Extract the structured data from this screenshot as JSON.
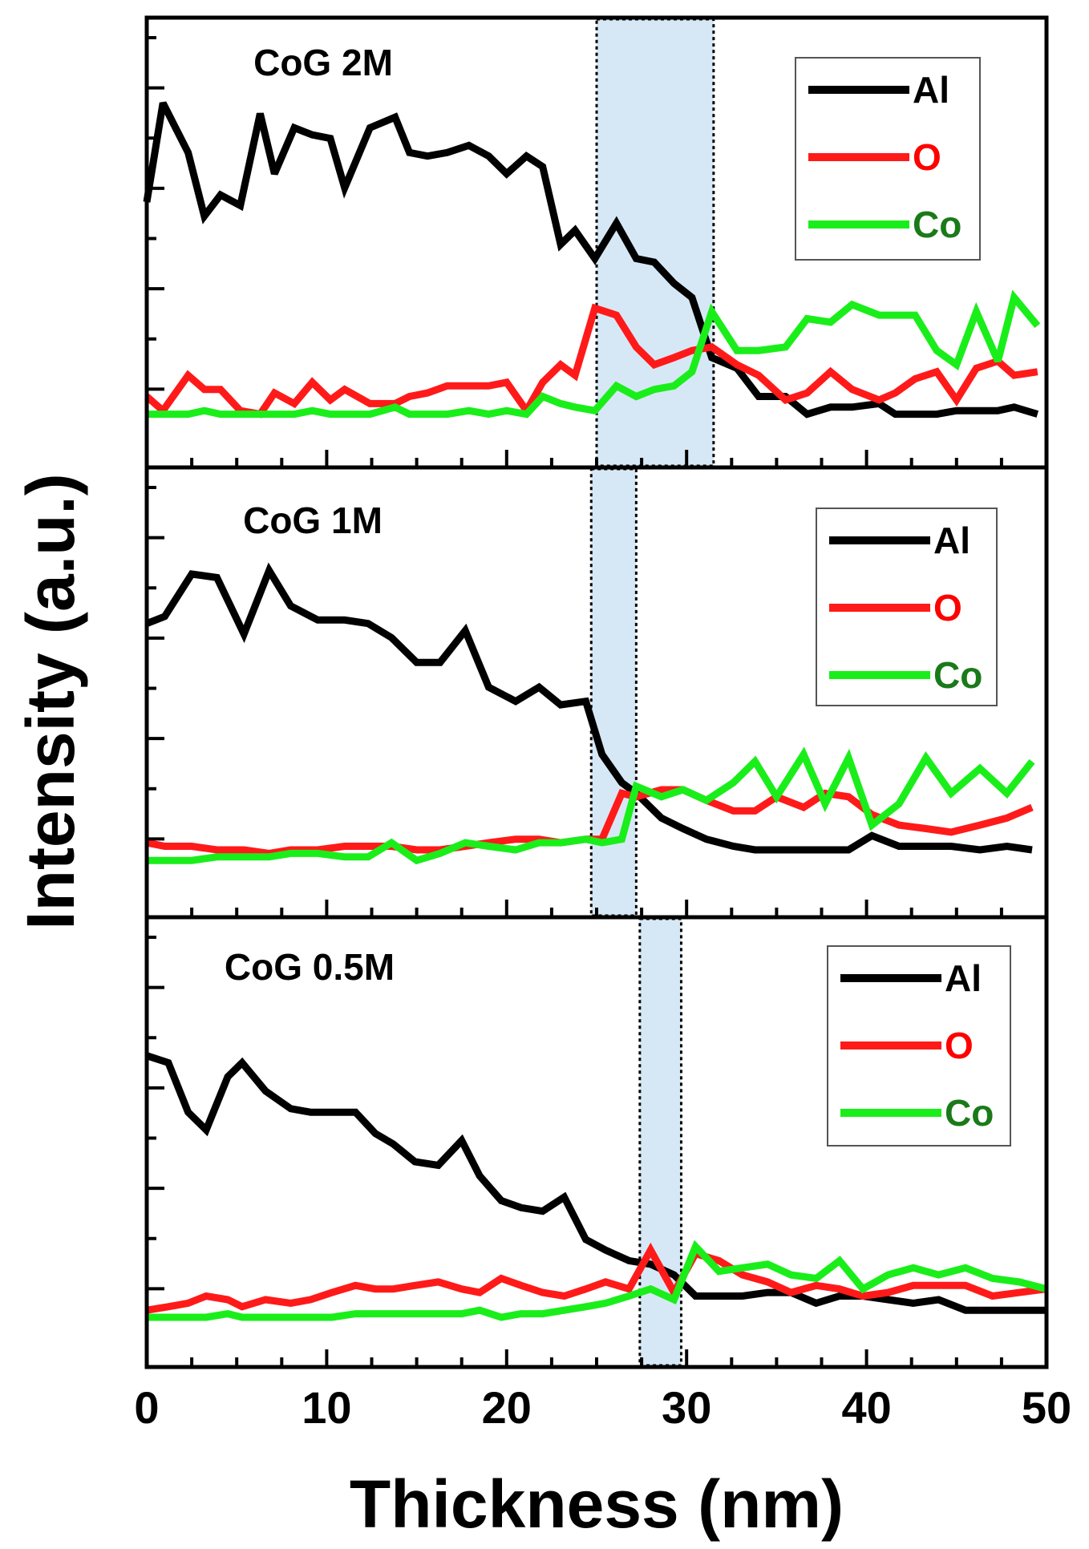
{
  "figure": {
    "xlabel": "Thickness (nm)",
    "ylabel": "Intensity (a.u.)",
    "xticks": [
      "0",
      "10",
      "20",
      "30",
      "40",
      "50"
    ]
  },
  "colors": {
    "Al": "#000000",
    "O": "#ff1a1a",
    "Co": "#1aee1a",
    "band": "#d6e8f5"
  },
  "chart_data": [
    {
      "type": "line",
      "title": "CoG 2M",
      "xlim": [
        0,
        50
      ],
      "ylim": [
        0,
        1
      ],
      "band": [
        25,
        31.5
      ],
      "x": [
        0,
        0.9,
        2.3,
        3.2,
        4.1,
        5.2,
        6.3,
        7.1,
        8.2,
        9.2,
        10.2,
        11.0,
        12.4,
        13.8,
        14.6,
        15.6,
        16.7,
        17.9,
        19.0,
        20.0,
        21.1,
        22.0,
        23.0,
        23.8,
        24.9,
        26.1,
        27.2,
        28.2,
        29.3,
        30.3,
        31.4,
        32.8,
        34.0,
        35.5,
        36.7,
        38.0,
        39.2,
        40.7,
        41.6,
        42.7,
        43.9,
        45.0,
        46.1,
        47.3,
        48.2,
        49.5
      ],
      "series": [
        {
          "name": "Al",
          "values": [
            0.61,
            0.89,
            0.75,
            0.57,
            0.63,
            0.6,
            0.86,
            0.69,
            0.82,
            0.8,
            0.79,
            0.65,
            0.82,
            0.85,
            0.75,
            0.74,
            0.75,
            0.77,
            0.74,
            0.69,
            0.74,
            0.71,
            0.49,
            0.53,
            0.45,
            0.55,
            0.45,
            0.44,
            0.38,
            0.34,
            0.17,
            0.14,
            0.06,
            0.06,
            0.01,
            0.03,
            0.03,
            0.04,
            0.01,
            0.01,
            0.01,
            0.02,
            0.02,
            0.02,
            0.03,
            0.01
          ]
        },
        {
          "name": "O",
          "values": [
            0.06,
            0.02,
            0.12,
            0.08,
            0.08,
            0.02,
            0.01,
            0.07,
            0.04,
            0.1,
            0.05,
            0.08,
            0.04,
            0.04,
            0.06,
            0.07,
            0.09,
            0.09,
            0.09,
            0.1,
            0.02,
            0.1,
            0.15,
            0.12,
            0.31,
            0.29,
            0.2,
            0.15,
            0.17,
            0.19,
            0.2,
            0.15,
            0.12,
            0.05,
            0.07,
            0.13,
            0.08,
            0.05,
            0.07,
            0.11,
            0.13,
            0.05,
            0.14,
            0.16,
            0.12,
            0.13
          ]
        },
        {
          "name": "Co",
          "values": [
            0.01,
            0.01,
            0.01,
            0.02,
            0.01,
            0.01,
            0.01,
            0.01,
            0.01,
            0.02,
            0.01,
            0.01,
            0.01,
            0.03,
            0.01,
            0.01,
            0.01,
            0.02,
            0.01,
            0.02,
            0.01,
            0.06,
            0.04,
            0.03,
            0.02,
            0.09,
            0.06,
            0.08,
            0.09,
            0.13,
            0.3,
            0.19,
            0.19,
            0.2,
            0.28,
            0.27,
            0.32,
            0.29,
            0.29,
            0.29,
            0.19,
            0.15,
            0.3,
            0.16,
            0.34,
            0.26
          ]
        }
      ],
      "legend": [
        "Al",
        "O",
        "Co"
      ]
    },
    {
      "type": "line",
      "title": "CoG 1M",
      "xlim": [
        0,
        50
      ],
      "ylim": [
        0,
        1
      ],
      "band": [
        24.7,
        27.2
      ],
      "x": [
        0,
        1.0,
        2.5,
        3.9,
        5.4,
        6.8,
        8.0,
        9.5,
        11.0,
        12.3,
        13.6,
        15.0,
        16.3,
        17.7,
        19.0,
        20.5,
        21.8,
        23.0,
        24.4,
        25.3,
        26.4,
        27.2,
        28.6,
        29.8,
        31.1,
        32.6,
        33.8,
        35.0,
        36.5,
        37.7,
        39.0,
        40.3,
        41.8,
        43.3,
        44.7,
        46.3,
        47.8,
        49.2
      ],
      "series": [
        {
          "name": "Al",
          "values": [
            0.69,
            0.71,
            0.83,
            0.82,
            0.66,
            0.84,
            0.74,
            0.7,
            0.7,
            0.69,
            0.65,
            0.58,
            0.58,
            0.67,
            0.51,
            0.47,
            0.51,
            0.46,
            0.47,
            0.32,
            0.24,
            0.21,
            0.14,
            0.11,
            0.08,
            0.06,
            0.05,
            0.05,
            0.05,
            0.05,
            0.05,
            0.09,
            0.06,
            0.06,
            0.06,
            0.05,
            0.06,
            0.05
          ]
        },
        {
          "name": "O",
          "values": [
            0.07,
            0.06,
            0.06,
            0.05,
            0.05,
            0.04,
            0.05,
            0.05,
            0.06,
            0.06,
            0.06,
            0.05,
            0.05,
            0.06,
            0.07,
            0.08,
            0.08,
            0.07,
            0.08,
            0.08,
            0.21,
            0.2,
            0.22,
            0.22,
            0.19,
            0.16,
            0.16,
            0.2,
            0.17,
            0.21,
            0.2,
            0.15,
            0.12,
            0.11,
            0.1,
            0.12,
            0.14,
            0.17
          ]
        },
        {
          "name": "Co",
          "values": [
            0.02,
            0.02,
            0.02,
            0.03,
            0.03,
            0.03,
            0.04,
            0.04,
            0.03,
            0.03,
            0.07,
            0.02,
            0.04,
            0.07,
            0.06,
            0.05,
            0.07,
            0.07,
            0.08,
            0.07,
            0.08,
            0.23,
            0.2,
            0.22,
            0.19,
            0.24,
            0.3,
            0.2,
            0.32,
            0.18,
            0.31,
            0.12,
            0.18,
            0.31,
            0.21,
            0.28,
            0.21,
            0.3
          ]
        }
      ],
      "legend": [
        "Al",
        "O",
        "Co"
      ]
    },
    {
      "type": "line",
      "title": "CoG 0.5M",
      "xlim": [
        0,
        50
      ],
      "ylim": [
        0,
        1
      ],
      "band": [
        27.4,
        29.7
      ],
      "x": [
        0,
        1.2,
        2.3,
        3.3,
        4.5,
        5.3,
        6.6,
        8.0,
        9.1,
        10.3,
        11.6,
        12.7,
        13.7,
        14.9,
        16.2,
        17.5,
        18.5,
        19.7,
        20.8,
        22.0,
        23.2,
        24.4,
        25.5,
        26.8,
        28.0,
        29.3,
        30.5,
        31.8,
        33.1,
        34.5,
        35.8,
        37.2,
        38.5,
        39.8,
        41.2,
        42.6,
        44.0,
        45.5,
        47.0,
        48.5,
        50.0
      ],
      "series": [
        {
          "name": "Al",
          "values": [
            0.74,
            0.72,
            0.58,
            0.53,
            0.68,
            0.72,
            0.64,
            0.59,
            0.58,
            0.58,
            0.58,
            0.52,
            0.49,
            0.44,
            0.43,
            0.5,
            0.4,
            0.33,
            0.31,
            0.3,
            0.34,
            0.22,
            0.19,
            0.16,
            0.15,
            0.12,
            0.06,
            0.06,
            0.06,
            0.07,
            0.07,
            0.04,
            0.06,
            0.06,
            0.05,
            0.04,
            0.05,
            0.02,
            0.02,
            0.02,
            0.02
          ]
        },
        {
          "name": "O",
          "values": [
            0.02,
            0.03,
            0.04,
            0.06,
            0.05,
            0.03,
            0.05,
            0.04,
            0.05,
            0.07,
            0.09,
            0.08,
            0.08,
            0.09,
            0.1,
            0.08,
            0.07,
            0.11,
            0.09,
            0.07,
            0.06,
            0.08,
            0.1,
            0.08,
            0.19,
            0.07,
            0.18,
            0.16,
            0.12,
            0.1,
            0.07,
            0.09,
            0.08,
            0.06,
            0.07,
            0.09,
            0.09,
            0.09,
            0.06,
            0.07,
            0.08
          ]
        },
        {
          "name": "Co",
          "values": [
            0.0,
            0.0,
            0.0,
            0.0,
            0.01,
            0.0,
            0.0,
            0.0,
            0.0,
            0.0,
            0.01,
            0.01,
            0.01,
            0.01,
            0.01,
            0.01,
            0.02,
            0.0,
            0.01,
            0.01,
            0.02,
            0.03,
            0.04,
            0.06,
            0.08,
            0.05,
            0.2,
            0.13,
            0.14,
            0.15,
            0.12,
            0.11,
            0.16,
            0.08,
            0.12,
            0.14,
            0.12,
            0.14,
            0.11,
            0.1,
            0.08
          ]
        }
      ],
      "legend": [
        "Al",
        "O",
        "Co"
      ]
    }
  ]
}
